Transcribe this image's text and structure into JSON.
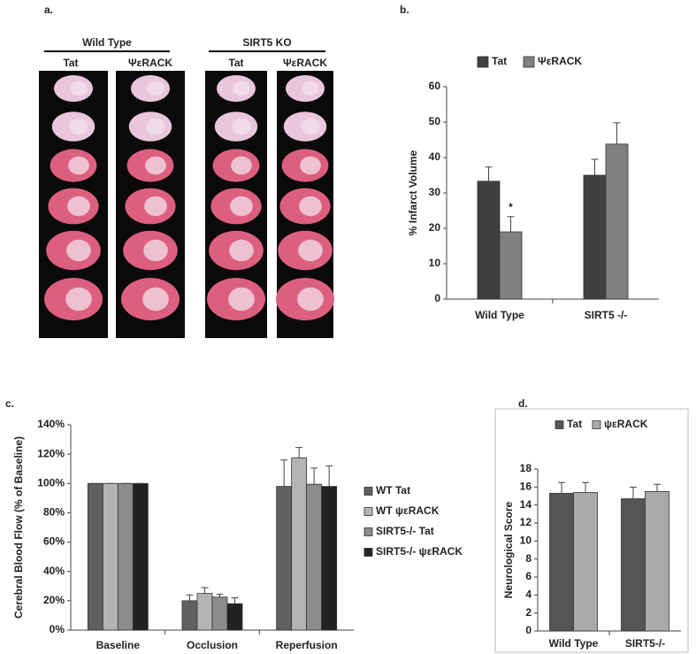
{
  "image_panel": {
    "label": "a.",
    "groups": [
      {
        "name": "Wild Type",
        "columns": [
          "Tat",
          "ΨεRACK"
        ]
      },
      {
        "name": "SIRT5 KO",
        "columns": [
          "Tat",
          "ΨεRACK"
        ]
      }
    ]
  },
  "chart_data": [
    {
      "type": "bar",
      "label": "b.",
      "ylabel": "% Infarct Volume",
      "annotation": "*",
      "categories": [
        "Wild Type",
        "SIRT5 -/-"
      ],
      "series": [
        {
          "name": "Tat",
          "color": "#404040",
          "values": [
            33.3,
            35
          ],
          "errors": [
            4,
            4.5
          ]
        },
        {
          "name": "ΨεRACK",
          "color": "#808080",
          "values": [
            19,
            43.8
          ],
          "errors": [
            4.3,
            6
          ]
        }
      ],
      "ylim": [
        0,
        60
      ],
      "yticks": [
        0,
        10,
        20,
        30,
        40,
        50,
        60
      ],
      "legend": "top"
    },
    {
      "type": "bar",
      "label": "c.",
      "ylabel": "Cerebral Blood Flow (% of Baseline)",
      "categories": [
        "Baseline",
        "Occlusion",
        "Reperfusion"
      ],
      "series": [
        {
          "name": "WT Tat",
          "color": "#606060",
          "values": [
            100,
            20,
            98
          ],
          "errors": [
            0,
            4,
            18
          ]
        },
        {
          "name": "WT ψεRACK",
          "color": "#b4b4b4",
          "values": [
            100,
            25,
            117.5
          ],
          "errors": [
            0,
            4,
            7
          ]
        },
        {
          "name": "SIRT5-/- Tat",
          "color": "#8c8c8c",
          "values": [
            100,
            22.5,
            99.5
          ],
          "errors": [
            0,
            2,
            11
          ]
        },
        {
          "name": "SIRT5-/- ψεRACK",
          "color": "#222222",
          "values": [
            100,
            18,
            98
          ],
          "errors": [
            0,
            4,
            14
          ]
        }
      ],
      "ylim": [
        0,
        140
      ],
      "yticks": [
        {
          "value": 0,
          "label": "0%"
        },
        {
          "value": 20,
          "label": "20%"
        },
        {
          "value": 40,
          "label": "40%"
        },
        {
          "value": 60,
          "label": "60%"
        },
        {
          "value": 80,
          "label": "80%"
        },
        {
          "value": 100,
          "label": "100%"
        },
        {
          "value": 120,
          "label": "120%"
        },
        {
          "value": 140,
          "label": "140%"
        }
      ],
      "legend": "right"
    },
    {
      "type": "bar",
      "label": "d.",
      "ylabel": "Neurological Score",
      "categories": [
        "Wild Type",
        "SIRT5-/-"
      ],
      "series": [
        {
          "name": "Tat",
          "color": "#555555",
          "values": [
            15.3,
            14.7
          ],
          "errors": [
            1.2,
            1.3
          ]
        },
        {
          "name": "ψεRACK",
          "color": "#aaaaaa",
          "values": [
            15.4,
            15.5
          ],
          "errors": [
            1.1,
            0.8
          ]
        }
      ],
      "ylim": [
        0,
        18
      ],
      "yticks": [
        0,
        2,
        4,
        6,
        8,
        10,
        12,
        14,
        16,
        18
      ],
      "legend": "top",
      "frame": true
    }
  ]
}
